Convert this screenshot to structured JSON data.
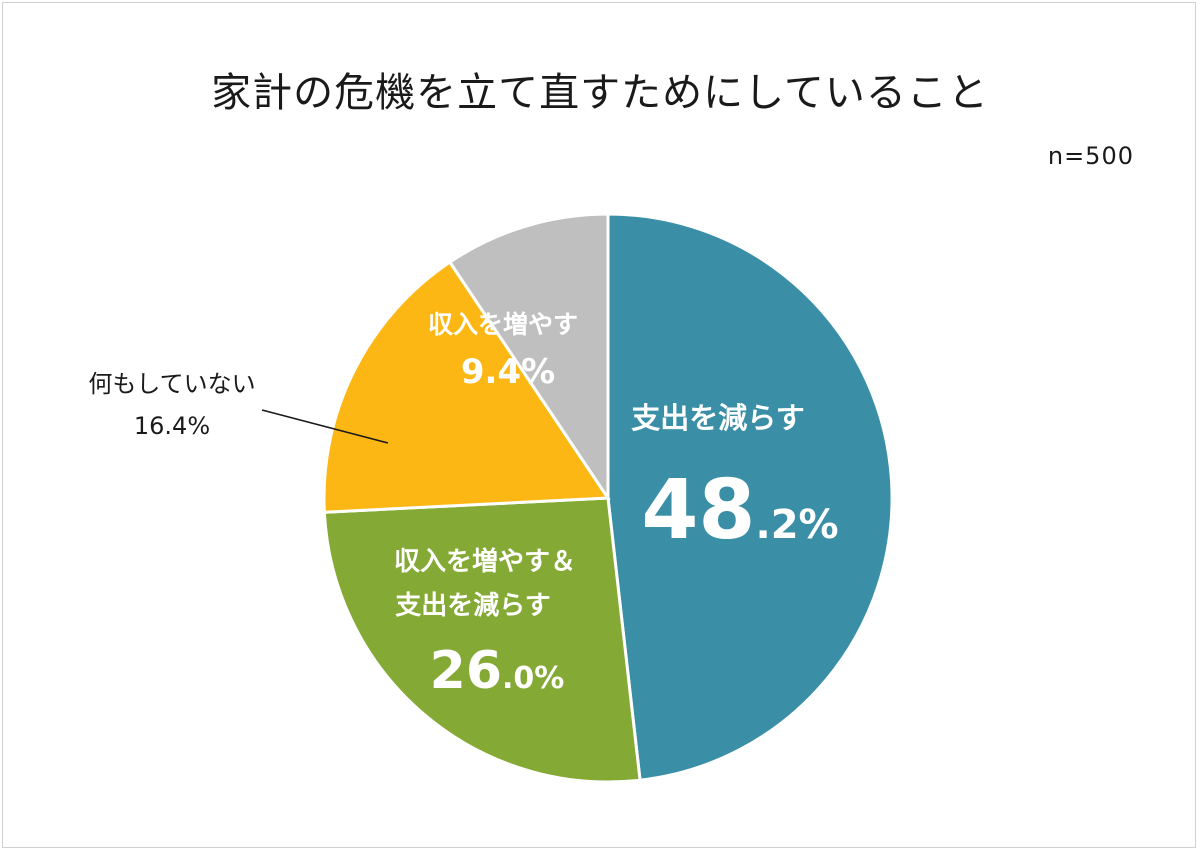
{
  "title": "家計の危機を立て直すためにしていること",
  "sample_size": "n=500",
  "chart_data": {
    "type": "pie",
    "title": "家計の危機を立て直すためにしていること",
    "slices": [
      {
        "name": "支出を減らす",
        "value": 48.2,
        "display_int": "48",
        "display_dec": ".2%",
        "color": "#3a8fa6"
      },
      {
        "name": "収入を増やす＆支出を減らす",
        "name_lines": [
          "収入を増やす＆",
          "支出を減らす"
        ],
        "value": 26.0,
        "display_int": "26",
        "display_dec": ".0%",
        "color": "#84a934"
      },
      {
        "name": "何もしていない",
        "value": 16.4,
        "display": "16.4%",
        "color": "#fdb714"
      },
      {
        "name": "収入を増やす",
        "value": 9.4,
        "display": "9.4%",
        "color": "#bfbfbf"
      }
    ]
  }
}
